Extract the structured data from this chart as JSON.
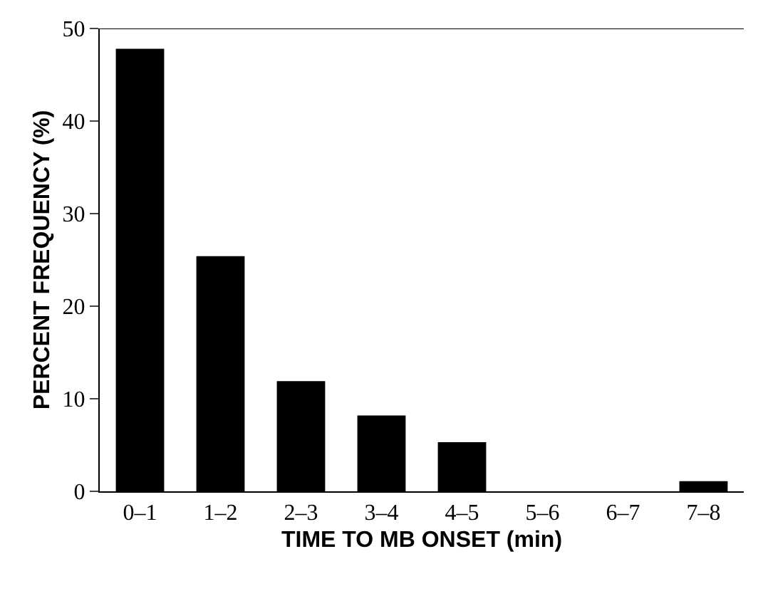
{
  "chart_data": {
    "type": "bar",
    "xlabel": "TIME TO MB ONSET (min)",
    "ylabel": "PERCENT FREQUENCY (%)",
    "categories": [
      "0–1",
      "1–2",
      "2–3",
      "3–4",
      "4–5",
      "5–6",
      "6–7",
      "7–8"
    ],
    "values": [
      47.8,
      25.4,
      11.9,
      8.2,
      5.3,
      0,
      0,
      1.1
    ],
    "color": "#000000",
    "ylim": [
      0,
      50
    ],
    "yticks": [
      0,
      10,
      20,
      30,
      40,
      50
    ],
    "legend": false
  }
}
